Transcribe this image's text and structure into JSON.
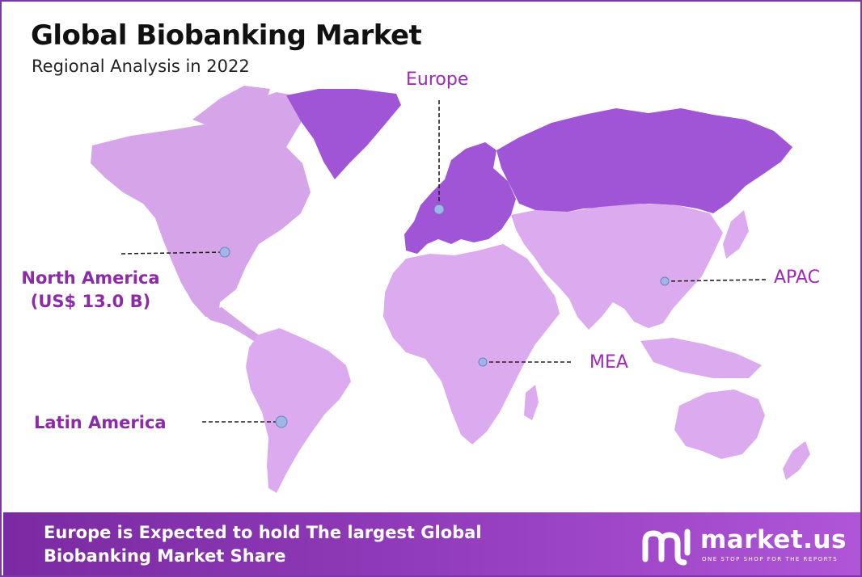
{
  "header": {
    "title": "Global Biobanking Market",
    "subtitle": "Regional Analysis in 2022"
  },
  "regions": {
    "europe": {
      "label": "Europe"
    },
    "north_america": {
      "label": "North America",
      "value": "(US$ 13.0 B)"
    },
    "latin_america": {
      "label": "Latin America"
    },
    "apac": {
      "label": "APAC"
    },
    "mea": {
      "label": "MEA"
    }
  },
  "footer": {
    "text": "Europe is Expected to hold The largest Global Biobanking Market Share"
  },
  "brand": {
    "name": "market.us",
    "tagline": "ONE STOP SHOP FOR THE REPORTS"
  },
  "colors": {
    "highlight_region": "#a055d6",
    "other_regions": "#dcaaee",
    "north_america": "#d6a4e9",
    "label_purple": "#9b2bb5",
    "footer_start": "#7a2aa2",
    "footer_end": "#b055d8",
    "border": "#7b3a9c",
    "marker": "#9fb7e6"
  }
}
